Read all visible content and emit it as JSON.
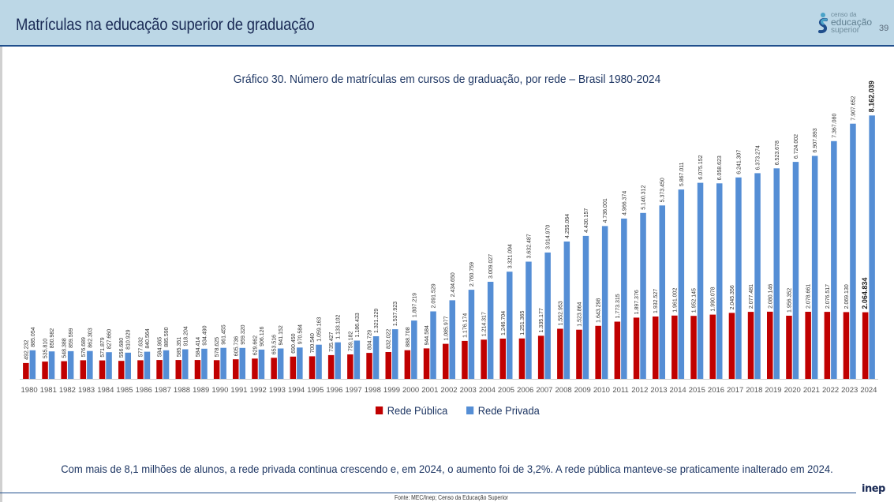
{
  "header": {
    "title": "Matrículas na educação superior de graduação",
    "page_number": "39",
    "logo": {
      "line1": "censo da",
      "line2": "educação",
      "line3": "superior",
      "icon": "censo-logo-icon"
    }
  },
  "chart_data": {
    "type": "bar",
    "title": "Gráfico 30. Número de matrículas em cursos de graduação, por rede – Brasil 1980-2024",
    "xlabel": "",
    "ylabel": "",
    "ylim": [
      0,
      9000000
    ],
    "grid": false,
    "legend_position": "bottom",
    "categories": [
      "1980",
      "1981",
      "1982",
      "1983",
      "1984",
      "1985",
      "1986",
      "1987",
      "1988",
      "1989",
      "1990",
      "1991",
      "1992",
      "1993",
      "1994",
      "1995",
      "1996",
      "1997",
      "1998",
      "1999",
      "2000",
      "2001",
      "2002",
      "2003",
      "2004",
      "2005",
      "2006",
      "2007",
      "2008",
      "2009",
      "2010",
      "2011",
      "2012",
      "2013",
      "2014",
      "2015",
      "2016",
      "2017",
      "2018",
      "2019",
      "2020",
      "2021",
      "2022",
      "2023",
      "2024"
    ],
    "series": [
      {
        "name": "Rede Pública",
        "color": "#c00000",
        "values": [
          492232,
          535810,
          548388,
          576689,
          571879,
          556680,
          577632,
          584965,
          585351,
          584414,
          578625,
          605736,
          629662,
          653516,
          690450,
          700540,
          735427,
          759182,
          804729,
          832022,
          888708,
          944584,
          1085977,
          1176174,
          1214317,
          1246704,
          1251365,
          1335177,
          1552953,
          1523864,
          1643298,
          1773315,
          1897376,
          1932527,
          1961002,
          1952145,
          1990078,
          2045356,
          2077481,
          2080146,
          1956352,
          2078661,
          2076517,
          2069130,
          2064834
        ],
        "labels": [
          "492.232",
          "535.810",
          "548.388",
          "576.689",
          "571.879",
          "556.680",
          "577.632",
          "584.965",
          "585.351",
          "584.414",
          "578.625",
          "605.736",
          "629.662",
          "653.516",
          "690.450",
          "700.540",
          "735.427",
          "759.182",
          "804.729",
          "832.022",
          "888.708",
          "944.584",
          "1.085.977",
          "1.176.174",
          "1.214.317",
          "1.246.704",
          "1.251.365",
          "1.335.177",
          "1.552.953",
          "1.523.864",
          "1.643.298",
          "1.773.315",
          "1.897.376",
          "1.932.527",
          "1.961.002",
          "1.952.145",
          "1.990.078",
          "2.045.356",
          "2.077.481",
          "2.080.146",
          "1.956.352",
          "2.078.661",
          "2.076.517",
          "2.069.130",
          "2.064.834"
        ]
      },
      {
        "name": "Rede Privada",
        "color": "#558ed5",
        "values": [
          885054,
          850982,
          859599,
          862303,
          827660,
          810929,
          840564,
          885590,
          918204,
          934490,
          961455,
          959320,
          906126,
          941152,
          970584,
          1059163,
          1133102,
          1186433,
          1321229,
          1537923,
          1807219,
          2091529,
          2434650,
          2760759,
          3009027,
          3321094,
          3632487,
          3914970,
          4255064,
          4430157,
          4736001,
          4966374,
          5140312,
          5373450,
          5867011,
          6075152,
          6058623,
          6241307,
          6373274,
          6523678,
          6724002,
          6907893,
          7367080,
          7907652,
          8162039
        ],
        "labels": [
          "885.054",
          "850.982",
          "859.599",
          "862.303",
          "827.660",
          "810.929",
          "840.564",
          "885.590",
          "918.204",
          "934.490",
          "961.455",
          "959.320",
          "906.126",
          "941.152",
          "970.584",
          "1.059.163",
          "1.133.102",
          "1.186.433",
          "1.321.229",
          "1.537.923",
          "1.807.219",
          "2.091.529",
          "2.434.650",
          "2.760.759",
          "3.009.027",
          "3.321.094",
          "3.632.487",
          "3.914.970",
          "4.255.064",
          "4.430.157",
          "4.736.001",
          "4.966.374",
          "5.140.312",
          "5.373.450",
          "5.867.011",
          "6.075.152",
          "6.058.623",
          "6.241.307",
          "6.373.274",
          "6.523.678",
          "6.724.002",
          "6.907.893",
          "7.367.080",
          "7.907.652",
          "8.162.039"
        ]
      }
    ]
  },
  "legend": [
    {
      "label": "Rede Pública",
      "color": "#c00000"
    },
    {
      "label": "Rede Privada",
      "color": "#558ed5"
    }
  ],
  "caption": "Com mais de 8,1 milhões de alunos, a rede privada continua crescendo e, em 2024, o aumento foi de 3,2%. A rede pública manteve-se praticamente inalterado em 2024.",
  "footer": {
    "source": "Fonte: MEC/Inep; Censo da Educação Superior",
    "brand": "inep"
  }
}
